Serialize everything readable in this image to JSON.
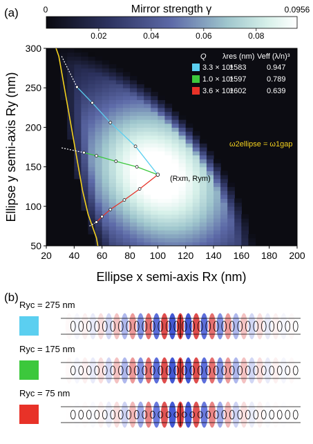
{
  "panel_a": {
    "label": "(a)",
    "colorbar": {
      "title": "Mirror strength  γ",
      "min_label": "0",
      "max_label": "0.0956",
      "ticks": [
        0.02,
        0.04,
        0.06,
        0.08
      ],
      "tick_labels": [
        "0.02",
        "0.04",
        "0.06",
        "0.08"
      ],
      "range": [
        0,
        0.0956
      ]
    },
    "table": {
      "headers": [
        "Q",
        "λres (nm)",
        "Veff (λ/n)³"
      ],
      "rows": [
        {
          "color": "#5bcff0",
          "q": "3.3 × 10⁶",
          "lambda": "1583",
          "veff": "0.947"
        },
        {
          "color": "#3cc83c",
          "q": "1.0 × 10⁵",
          "lambda": "1597",
          "veff": "0.789"
        },
        {
          "color": "#e83228",
          "q": "3.6 × 10⁴",
          "lambda": "1602",
          "veff": "0.639"
        }
      ]
    },
    "point_label": "(Rxm, Rym)",
    "curve_label": "ω2ellipse = ω1gap",
    "curve_color": "#f5d21e"
  },
  "chart_data": {
    "type": "heatmap",
    "xlabel": "Ellipse x semi-axis  Rx (nm)",
    "ylabel": "Ellipse y semi-axis  Ry (nm)",
    "xlim": [
      20,
      200
    ],
    "ylim": [
      50,
      300
    ],
    "xticks": [
      20,
      40,
      60,
      80,
      100,
      120,
      140,
      160,
      180,
      200
    ],
    "yticks": [
      50,
      100,
      150,
      200,
      250,
      300
    ],
    "colorbar_range": [
      0,
      0.0956
    ],
    "peak": {
      "x": 100,
      "y": 140,
      "value": 0.0956
    },
    "series": [
      {
        "color": "#5bcff0",
        "points": [
          [
            31,
            290
          ],
          [
            42,
            251
          ],
          [
            53,
            231
          ],
          [
            66,
            206
          ],
          [
            84,
            176
          ],
          [
            100,
            140
          ]
        ]
      },
      {
        "color": "#3cc83c",
        "points": [
          [
            31,
            174
          ],
          [
            47,
            168
          ],
          [
            56,
            164
          ],
          [
            70,
            157
          ],
          [
            85,
            150
          ],
          [
            100,
            140
          ]
        ]
      },
      {
        "color": "#e83228",
        "points": [
          [
            51,
            75
          ],
          [
            56,
            80
          ],
          [
            60,
            87
          ],
          [
            66,
            96
          ],
          [
            76,
            108
          ],
          [
            87,
            122
          ],
          [
            100,
            140
          ]
        ]
      }
    ],
    "boundary_curve": [
      [
        27,
        300
      ],
      [
        29,
        290
      ],
      [
        31,
        270
      ],
      [
        34,
        240
      ],
      [
        38,
        200
      ],
      [
        42,
        160
      ],
      [
        46,
        120
      ],
      [
        50,
        90
      ],
      [
        54,
        70
      ],
      [
        56,
        60
      ],
      [
        57,
        50
      ]
    ]
  },
  "panel_b": {
    "label": "(b)",
    "rows": [
      {
        "label_value": "Ryc = 275 nm",
        "color": "#5bcff0"
      },
      {
        "label_value": "Ryc = 175 nm",
        "color": "#3cc83c"
      },
      {
        "label_value": "Ryc = 75 nm",
        "color": "#e83228"
      }
    ]
  }
}
